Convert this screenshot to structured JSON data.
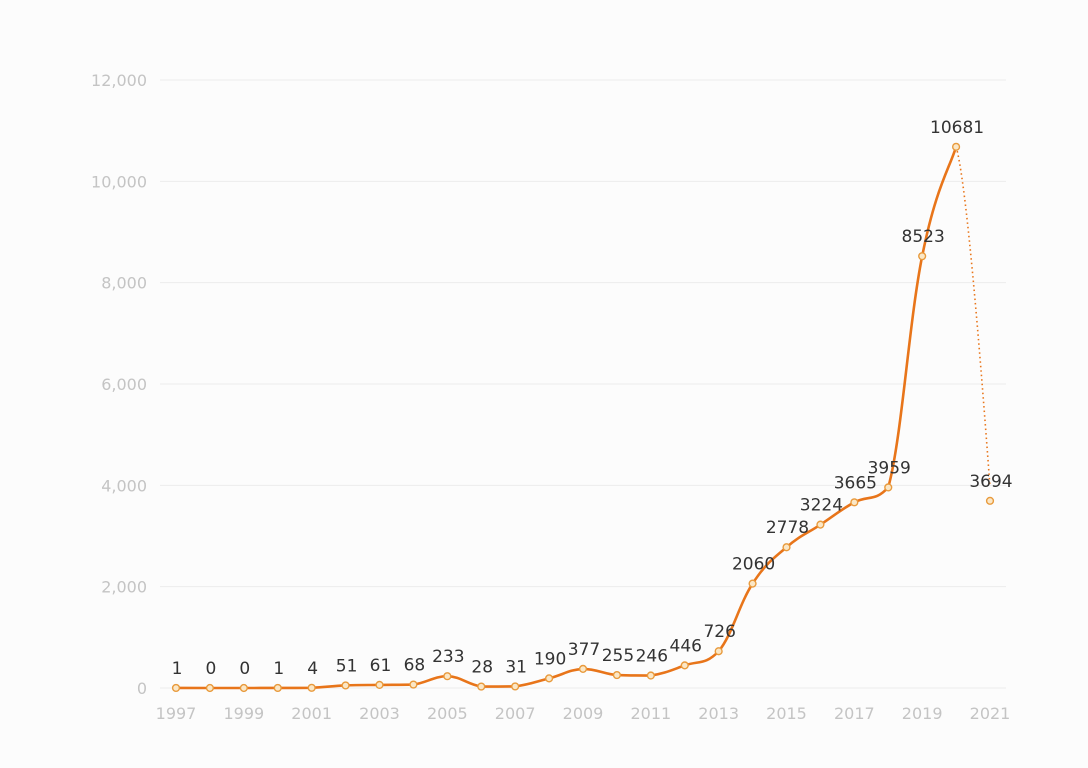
{
  "chart_data": {
    "type": "line",
    "title": "",
    "xlabel": "",
    "ylabel": "",
    "x": [
      1997,
      1998,
      1999,
      2000,
      2001,
      2002,
      2003,
      2004,
      2005,
      2006,
      2007,
      2008,
      2009,
      2010,
      2011,
      2012,
      2013,
      2014,
      2015,
      2016,
      2017,
      2018,
      2019,
      2020,
      2021
    ],
    "x_tick_labels": [
      "1997",
      "1999",
      "2001",
      "2003",
      "2005",
      "2007",
      "2009",
      "2011",
      "2013",
      "2015",
      "2017",
      "2019",
      "2021"
    ],
    "y_tick_labels": [
      "0",
      "2,000",
      "4,000",
      "6,000",
      "8,000",
      "10,000",
      "12,000"
    ],
    "ylim": [
      0,
      12000
    ],
    "grid": "horizontal",
    "series": [
      {
        "values": [
          1,
          0,
          0,
          1,
          4,
          51,
          61,
          68,
          233,
          28,
          31,
          190,
          377,
          255,
          246,
          446,
          726,
          2060,
          2778,
          3224,
          3665,
          3959,
          8523,
          10681,
          3694
        ],
        "labels": [
          "1",
          "0",
          "0",
          "1",
          "4",
          "51",
          "61",
          "68",
          "233",
          "28",
          "31",
          "190",
          "377",
          "255",
          "246",
          "446",
          "726",
          "2060",
          "2778",
          "3224",
          "3665",
          "3959",
          "8523",
          "10681",
          "3694"
        ],
        "line_style": "solid",
        "dotted_last_segment": true
      }
    ],
    "colors": {
      "line": "#e8751a",
      "point_fill": "#fbe7c6",
      "point_stroke": "#e89a3c",
      "grid": "#ececec",
      "tick_text": "#c4c4c4",
      "label_text": "#333333"
    }
  }
}
